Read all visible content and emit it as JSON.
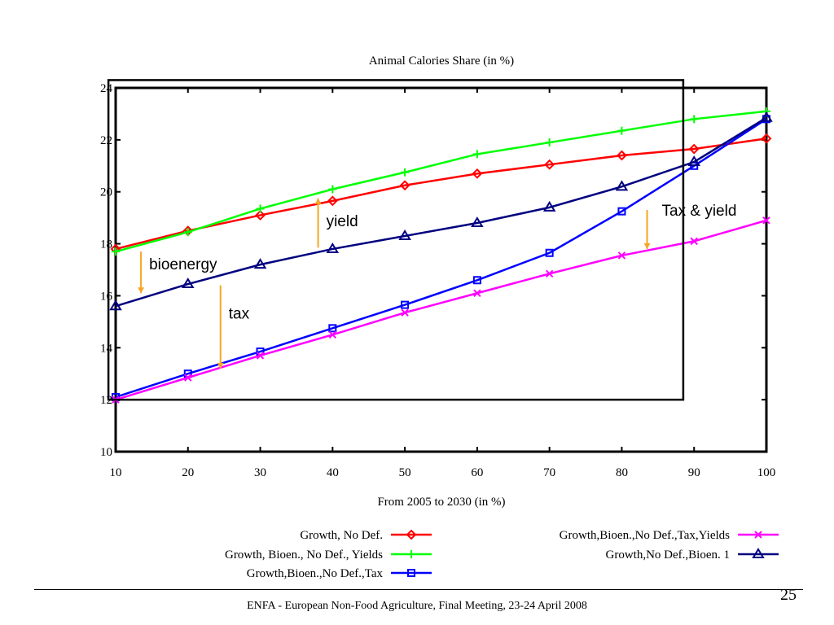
{
  "chart_data": {
    "type": "line",
    "title": "Animal Calories Share (in %)",
    "xlabel": "From 2005 to 2030 (in %)",
    "ylabel": "",
    "x": [
      10,
      20,
      30,
      40,
      50,
      60,
      70,
      80,
      90,
      100
    ],
    "xlim": [
      10,
      100
    ],
    "ylim": [
      10,
      24
    ],
    "xticks": [
      10,
      20,
      30,
      40,
      50,
      60,
      70,
      80,
      90,
      100
    ],
    "yticks": [
      10,
      12,
      14,
      16,
      18,
      20,
      22,
      24
    ],
    "grid": false,
    "legend_position": "bottom",
    "series": [
      {
        "name": "Growth, No Def.",
        "color": "#ff0000",
        "marker": "diamond",
        "values": [
          17.8,
          18.5,
          19.1,
          19.65,
          20.25,
          20.7,
          21.05,
          21.4,
          21.65,
          22.05
        ]
      },
      {
        "name": "Growth, Bioen., No Def., Yields",
        "color": "#00ff00",
        "marker": "plus",
        "values": [
          17.7,
          18.45,
          19.35,
          20.1,
          20.75,
          21.45,
          21.9,
          22.35,
          22.8,
          23.1
        ]
      },
      {
        "name": "Growth,Bioen.,No Def.,Tax",
        "color": "#0000ff",
        "marker": "square",
        "values": [
          12.1,
          13.0,
          13.85,
          14.75,
          15.65,
          16.6,
          17.65,
          19.25,
          21.0,
          22.8
        ]
      },
      {
        "name": "Growth,Bioen.,No Def.,Tax,Yields",
        "color": "#ff00ff",
        "marker": "x",
        "values": [
          12.0,
          12.85,
          13.7,
          14.5,
          15.35,
          16.1,
          16.85,
          17.55,
          18.1,
          18.9
        ]
      },
      {
        "name": "Growth,No Def.,Bioen. 1",
        "color": "#000080",
        "marker": "triangle",
        "values": [
          15.6,
          16.45,
          17.2,
          17.8,
          18.3,
          18.8,
          19.4,
          20.2,
          21.15,
          22.85
        ]
      }
    ],
    "annotations": [
      {
        "id": "bioenergy",
        "text": "bioenergy",
        "x": 13.5,
        "y_from": 17.7,
        "y_to": 16.1
      },
      {
        "id": "tax",
        "text": "tax",
        "x": 24.5,
        "y_from": 16.4,
        "y_to": 13.2
      },
      {
        "id": "yield",
        "text": "yield",
        "x": 38.0,
        "y_from": 17.85,
        "y_to": 19.75
      },
      {
        "id": "tax-yield",
        "text": "Tax & yield",
        "x": 83.5,
        "y_from": 19.3,
        "y_to": 17.8
      }
    ],
    "highlight_box": {
      "x0": 9,
      "x1": 88.5,
      "y0": 12,
      "y1": 24.3
    }
  },
  "footer": {
    "text": "ENFA - European Non-Food Agriculture,  Final Meeting, 23-24 April 2008",
    "page_number": "25"
  },
  "colors": {
    "annotation_arrow": "#f5a623",
    "highlight_box": "#000000"
  }
}
